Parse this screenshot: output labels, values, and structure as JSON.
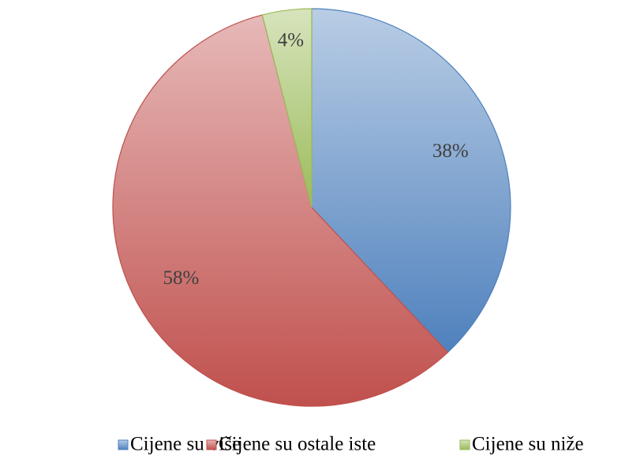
{
  "chart_data": {
    "type": "pie",
    "categories": [
      "Cijene su više",
      "Cijene su ostale iste",
      "Cijene su niže"
    ],
    "values": [
      38,
      58,
      4
    ],
    "value_labels": [
      "38%",
      "58%",
      "4%"
    ],
    "colors": [
      "#4f81bd",
      "#c0504d",
      "#9bbb59"
    ],
    "legend": "bottom"
  }
}
